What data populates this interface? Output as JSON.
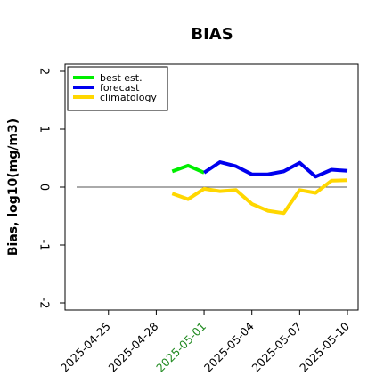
{
  "chart_data": {
    "type": "line",
    "title": "BIAS",
    "xlabel": "",
    "ylabel": "Bias, log10(mg/m3)",
    "ylim": [
      -2,
      2
    ],
    "yticks": [
      {
        "value": -2,
        "label": "-2"
      },
      {
        "value": -1,
        "label": "-1"
      },
      {
        "value": 0,
        "label": "0"
      },
      {
        "value": 1,
        "label": "1"
      },
      {
        "value": 2,
        "label": "2"
      }
    ],
    "xlim": [
      "2025-04-23",
      "2025-05-10"
    ],
    "xticks": [
      {
        "date": "2025-04-25",
        "label": "2025-04-25",
        "color": "#000000"
      },
      {
        "date": "2025-04-28",
        "label": "2025-04-28",
        "color": "#000000"
      },
      {
        "date": "2025-05-01",
        "label": "2025-05-01",
        "color": "#228b22"
      },
      {
        "date": "2025-05-04",
        "label": "2025-05-04",
        "color": "#000000"
      },
      {
        "date": "2025-05-07",
        "label": "2025-05-07",
        "color": "#000000"
      },
      {
        "date": "2025-05-10",
        "label": "2025-05-10",
        "color": "#000000"
      }
    ],
    "reference_line": {
      "y": 0,
      "color": "#555555"
    },
    "legend_position": "top-left",
    "series": [
      {
        "name": "best est.",
        "color": "#00ee00",
        "points": [
          {
            "x": "2025-04-29",
            "y": 0.27
          },
          {
            "x": "2025-04-30",
            "y": 0.37
          },
          {
            "x": "2025-05-01",
            "y": 0.25
          }
        ]
      },
      {
        "name": "forecast",
        "color": "#0000ee",
        "points": [
          {
            "x": "2025-05-01",
            "y": 0.25
          },
          {
            "x": "2025-05-02",
            "y": 0.43
          },
          {
            "x": "2025-05-03",
            "y": 0.36
          },
          {
            "x": "2025-05-04",
            "y": 0.22
          },
          {
            "x": "2025-05-05",
            "y": 0.22
          },
          {
            "x": "2025-05-06",
            "y": 0.27
          },
          {
            "x": "2025-05-07",
            "y": 0.42
          },
          {
            "x": "2025-05-08",
            "y": 0.18
          },
          {
            "x": "2025-05-09",
            "y": 0.3
          },
          {
            "x": "2025-05-10",
            "y": 0.28
          }
        ]
      },
      {
        "name": "climatology",
        "color": "#ffd700",
        "points": [
          {
            "x": "2025-04-29",
            "y": -0.11
          },
          {
            "x": "2025-04-30",
            "y": -0.21
          },
          {
            "x": "2025-05-01",
            "y": -0.03
          },
          {
            "x": "2025-05-02",
            "y": -0.07
          },
          {
            "x": "2025-05-03",
            "y": -0.05
          },
          {
            "x": "2025-05-04",
            "y": -0.29
          },
          {
            "x": "2025-05-05",
            "y": -0.41
          },
          {
            "x": "2025-05-06",
            "y": -0.45
          },
          {
            "x": "2025-05-07",
            "y": -0.05
          },
          {
            "x": "2025-05-08",
            "y": -0.1
          },
          {
            "x": "2025-05-09",
            "y": 0.11
          },
          {
            "x": "2025-05-10",
            "y": 0.12
          }
        ]
      }
    ]
  }
}
